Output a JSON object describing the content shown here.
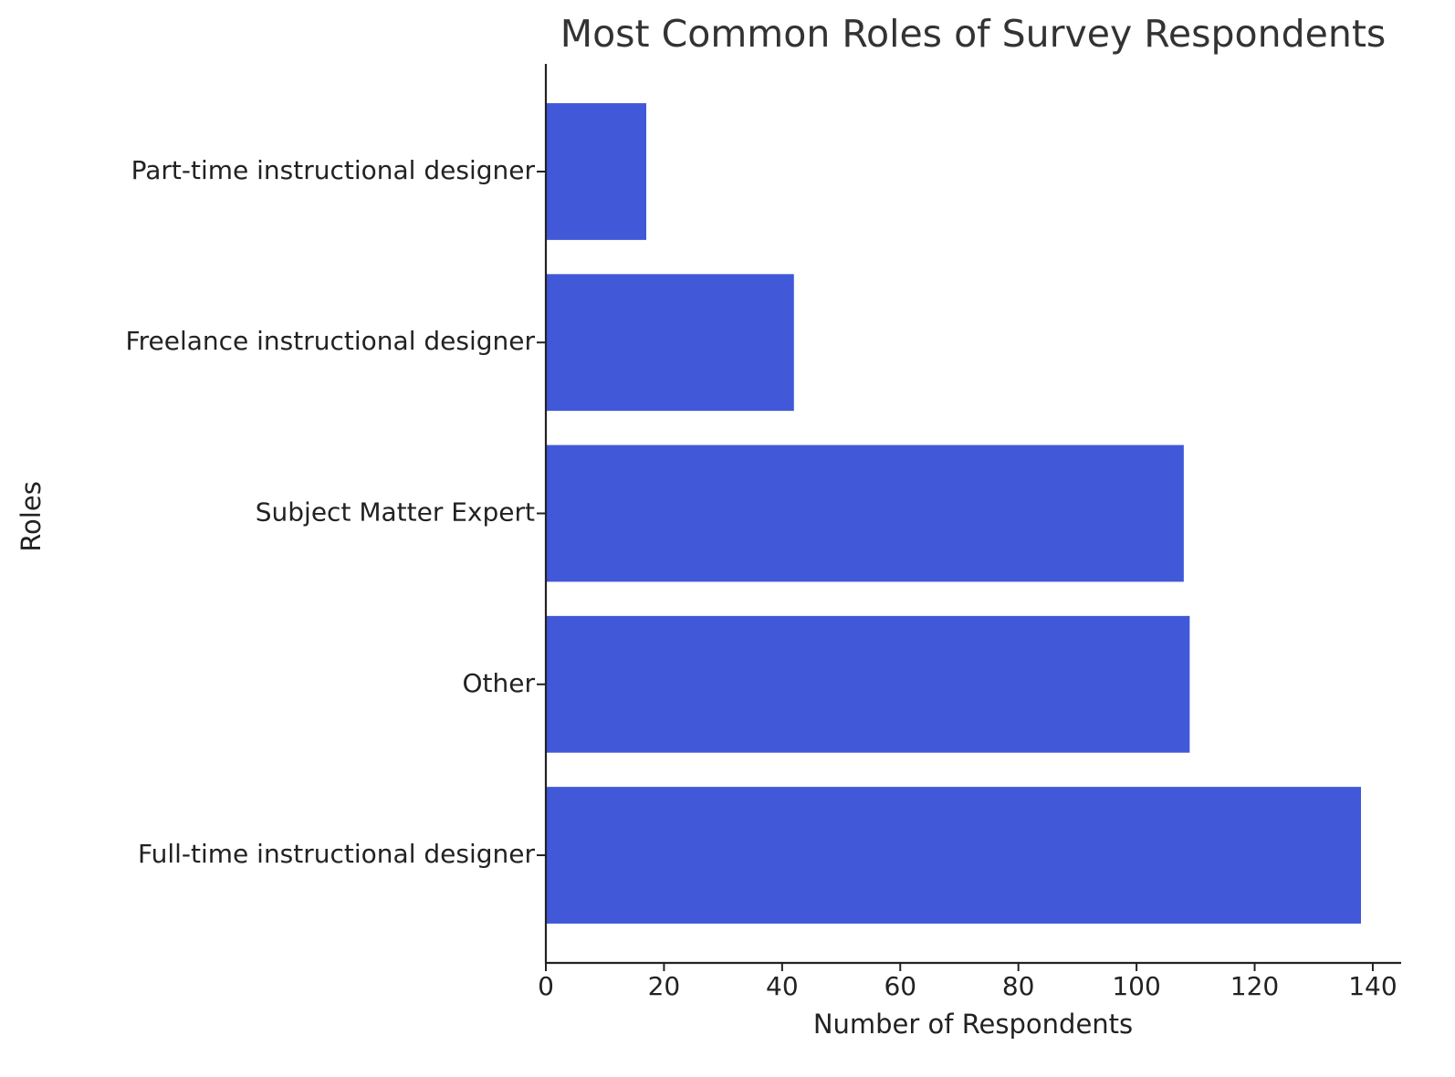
{
  "chart_data": {
    "type": "bar",
    "orientation": "horizontal",
    "title": "Most Common Roles of Survey Respondents",
    "xlabel": "Number of Respondents",
    "ylabel": "Roles",
    "categories": [
      "Full-time instructional designer",
      "Other",
      "Subject Matter Expert",
      "Freelance instructional designer",
      "Part-time instructional designer"
    ],
    "values": [
      138,
      109,
      108,
      42,
      17
    ],
    "color": "#4158d8",
    "xlim": [
      0,
      144.8
    ],
    "xticks": [
      0,
      20,
      40,
      60,
      80,
      100,
      120,
      140
    ]
  }
}
